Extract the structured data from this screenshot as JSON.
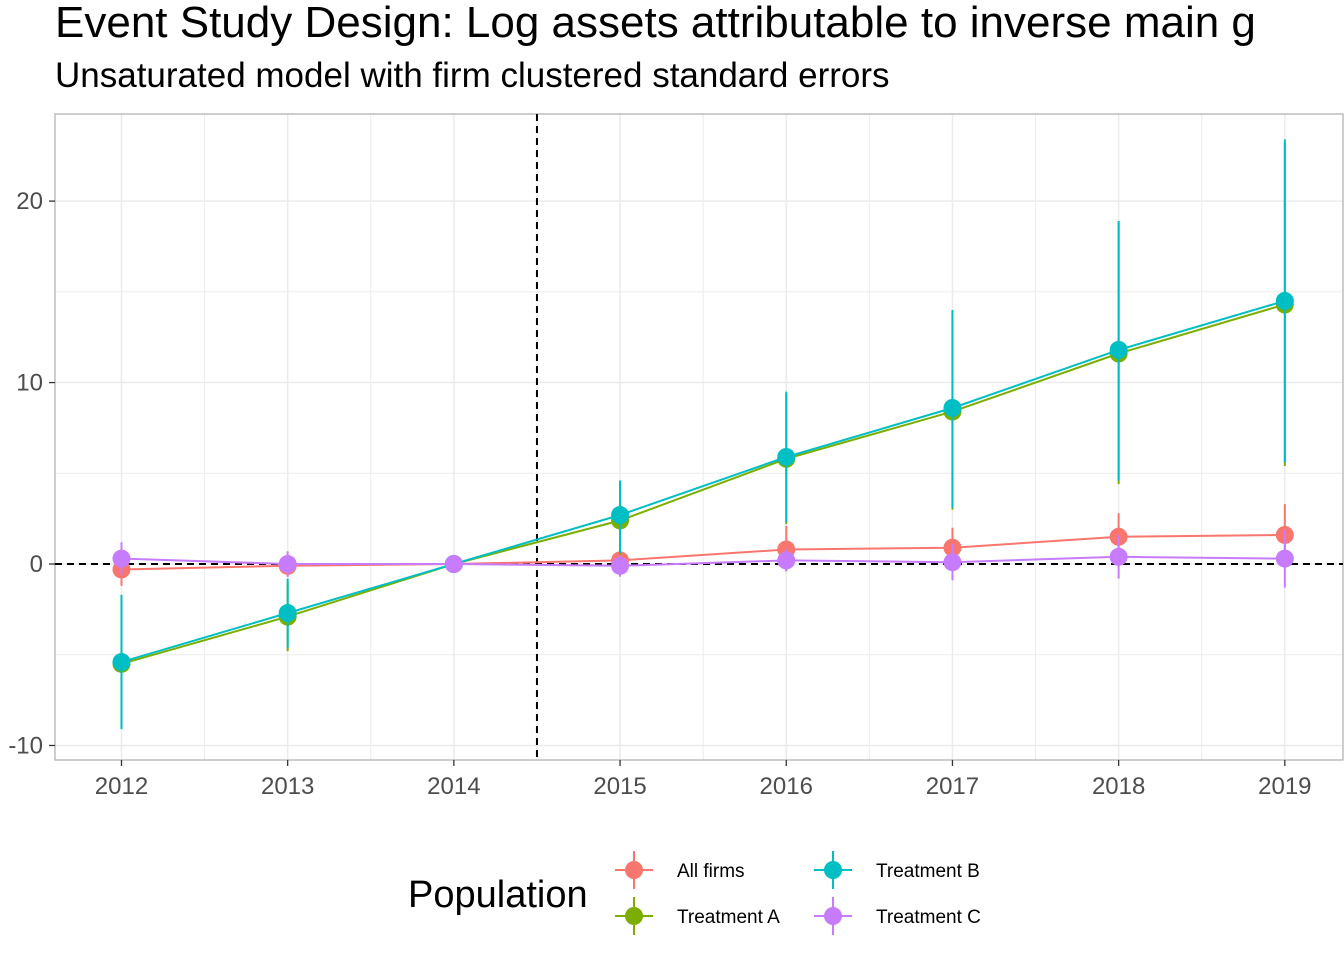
{
  "title": "Event Study Design: Log assets attributable to inverse main g",
  "subtitle": "Unsaturated model with firm clustered standard errors",
  "colors": {
    "all_firms": "#F8766D",
    "treatment_a": "#7CAE00",
    "treatment_b": "#00BFC4",
    "treatment_c": "#C77CFF",
    "grid": "#ebebeb",
    "panel_border": "#b3b3b3"
  },
  "chart_data": {
    "type": "line",
    "x": [
      2012,
      2013,
      2014,
      2015,
      2016,
      2017,
      2018,
      2019
    ],
    "xlim": [
      2011.6,
      2019.35
    ],
    "ylim": [
      -10.8,
      24.8
    ],
    "y_ticks": [
      -10,
      0,
      10,
      20
    ],
    "grid": true,
    "reference_lines": {
      "vertical_x": 2014.5,
      "horizontal_y": 0,
      "style": "dashed"
    },
    "legend": {
      "title": "Population",
      "position": "bottom"
    },
    "series": [
      {
        "name": "All firms",
        "color_key": "all_firms",
        "values": [
          -0.3,
          -0.1,
          0,
          0.2,
          0.8,
          0.9,
          1.5,
          1.6
        ],
        "lower": [
          -1.2,
          -0.7,
          0,
          -0.5,
          -0.4,
          -0.2,
          0.3,
          -0.1
        ],
        "upper": [
          0.6,
          0.5,
          0,
          0.9,
          2.1,
          2.0,
          2.8,
          3.3
        ]
      },
      {
        "name": "Treatment A",
        "color_key": "treatment_a",
        "values": [
          -5.5,
          -2.9,
          0,
          2.4,
          5.8,
          8.4,
          11.6,
          14.3
        ],
        "lower": [
          -9.0,
          -4.8,
          0,
          0.3,
          2.2,
          3.0,
          4.4,
          5.4
        ],
        "upper": [
          -2.0,
          -1.0,
          0,
          4.5,
          9.4,
          13.8,
          18.8,
          23.2
        ]
      },
      {
        "name": "Treatment B",
        "color_key": "treatment_b",
        "values": [
          -5.4,
          -2.7,
          0,
          2.7,
          5.9,
          8.6,
          11.8,
          14.5
        ],
        "lower": [
          -9.1,
          -4.6,
          0,
          0.6,
          2.3,
          3.1,
          4.6,
          5.6
        ],
        "upper": [
          -1.7,
          -0.8,
          0,
          4.6,
          9.5,
          14.0,
          18.9,
          23.4
        ]
      },
      {
        "name": "Treatment C",
        "color_key": "treatment_c",
        "values": [
          0.3,
          0.0,
          0,
          -0.1,
          0.2,
          0.1,
          0.4,
          0.3
        ],
        "lower": [
          -0.6,
          -0.7,
          0,
          -0.7,
          -0.4,
          -0.9,
          -0.8,
          -1.3
        ],
        "upper": [
          1.2,
          0.7,
          0,
          0.5,
          0.8,
          1.1,
          1.6,
          1.9
        ]
      }
    ]
  }
}
